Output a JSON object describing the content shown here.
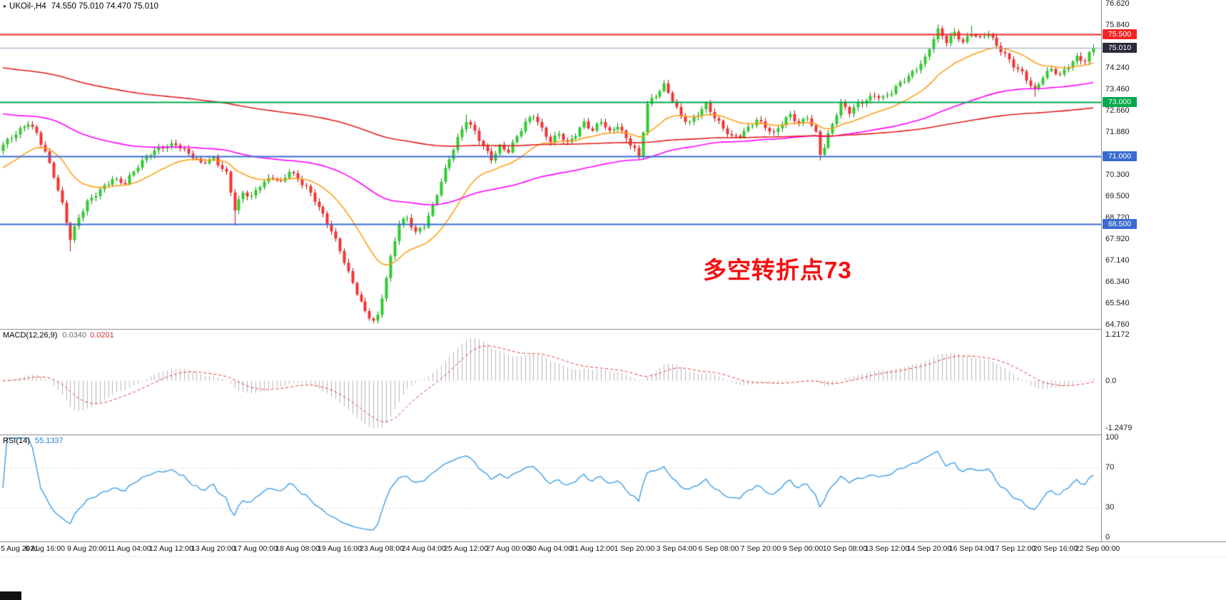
{
  "chart_data": {
    "type": "candlestick",
    "title_symbol": "UKOil-,H4",
    "ohlc_label": "74.550 75.010 74.470 75.010",
    "annotation": {
      "text": "多空转折点73",
      "color": "#f50f0f"
    },
    "price_axis": {
      "min": 64.76,
      "max": 76.62,
      "ticks": [
        "76.620",
        "75.840",
        "74.240",
        "73.460",
        "72.660",
        "71.880",
        "70.300",
        "69.500",
        "68.720",
        "67.920",
        "67.140",
        "66.340",
        "65.540",
        "64.760"
      ]
    },
    "time_axis": {
      "labels": [
        "5 Aug 2021",
        "6 Aug 16:00",
        "9 Aug 20:00",
        "11 Aug 04:00",
        "12 Aug 12:00",
        "13 Aug 20:00",
        "17 Aug 00:00",
        "18 Aug 08:00",
        "19 Aug 16:00",
        "23 Aug 08:00",
        "24 Aug 04:00",
        "25 Aug 12:00",
        "27 Aug 00:00",
        "30 Aug 04:00",
        "31 Aug 12:00",
        "1 Sep 20:00",
        "3 Sep 04:00",
        "6 Sep 08:00",
        "7 Sep 20:00",
        "9 Sep 00:00",
        "10 Sep 08:00",
        "13 Sep 12:00",
        "14 Sep 20:00",
        "16 Sep 04:00",
        "17 Sep 12:00",
        "20 Sep 16:00",
        "22 Sep 00:00"
      ]
    },
    "hlines": [
      {
        "price": 75.5,
        "label": "75.500",
        "color": "#f42525",
        "width": 2
      },
      {
        "price": 73.0,
        "label": "73.000",
        "color": "#00a84c",
        "width": 2
      },
      {
        "price": 71.0,
        "label": "71.000",
        "color": "#3a6bd0",
        "width": 2
      },
      {
        "price": 68.5,
        "label": "68.500",
        "color": "#3a6bd0",
        "width": 2
      }
    ],
    "price_line": {
      "price": 75.01,
      "label": "75.010",
      "color": "#8fa0bd",
      "badge_color": "#2b2b3b"
    },
    "candles": {
      "count": 260,
      "first_open": 71.2,
      "up_color": "#2ecc2e",
      "up_edge": "#0e8a0e",
      "down_color": "#f33434",
      "down_edge": "#a81212",
      "close_anchors": [
        [
          0,
          71.4
        ],
        [
          3,
          71.8
        ],
        [
          6,
          72.25
        ],
        [
          8,
          71.9
        ],
        [
          10,
          71.2
        ],
        [
          12,
          70.3
        ],
        [
          14,
          69.2
        ],
        [
          16,
          67.9
        ],
        [
          18,
          68.7
        ],
        [
          20,
          69.3
        ],
        [
          23,
          69.8
        ],
        [
          26,
          70.2
        ],
        [
          29,
          70.0
        ],
        [
          32,
          70.6
        ],
        [
          35,
          71.1
        ],
        [
          38,
          71.4
        ],
        [
          41,
          71.5
        ],
        [
          44,
          71.1
        ],
        [
          47,
          70.7
        ],
        [
          50,
          70.9
        ],
        [
          53,
          70.4
        ],
        [
          55,
          69.1
        ],
        [
          57,
          69.7
        ],
        [
          59,
          69.5
        ],
        [
          61,
          69.9
        ],
        [
          64,
          70.2
        ],
        [
          66,
          70.0
        ],
        [
          68,
          70.5
        ],
        [
          70,
          70.2
        ],
        [
          72,
          69.9
        ],
        [
          74,
          69.4
        ],
        [
          76,
          68.8
        ],
        [
          78,
          68.2
        ],
        [
          80,
          67.5
        ],
        [
          82,
          66.7
        ],
        [
          84,
          66.0
        ],
        [
          86,
          65.3
        ],
        [
          88,
          64.95
        ],
        [
          89,
          65.1
        ],
        [
          92,
          67.2
        ],
        [
          94,
          68.5
        ],
        [
          96,
          68.7
        ],
        [
          98,
          68.2
        ],
        [
          100,
          68.5
        ],
        [
          102,
          69.2
        ],
        [
          104,
          70.1
        ],
        [
          106,
          70.9
        ],
        [
          108,
          71.6
        ],
        [
          110,
          72.3
        ],
        [
          112,
          71.9
        ],
        [
          114,
          71.4
        ],
        [
          116,
          70.95
        ],
        [
          118,
          71.4
        ],
        [
          120,
          71.2
        ],
        [
          122,
          71.7
        ],
        [
          124,
          72.2
        ],
        [
          126,
          72.5
        ],
        [
          128,
          72.0
        ],
        [
          130,
          71.6
        ],
        [
          132,
          71.9
        ],
        [
          134,
          71.5
        ],
        [
          136,
          71.8
        ],
        [
          138,
          72.2
        ],
        [
          140,
          71.9
        ],
        [
          142,
          72.3
        ],
        [
          144,
          71.9
        ],
        [
          146,
          72.2
        ],
        [
          148,
          71.7
        ],
        [
          150,
          71.3
        ],
        [
          151,
          70.95
        ],
        [
          153,
          72.9
        ],
        [
          155,
          73.2
        ],
        [
          157,
          73.6
        ],
        [
          159,
          73.1
        ],
        [
          161,
          72.5
        ],
        [
          163,
          72.3
        ],
        [
          165,
          72.6
        ],
        [
          167,
          72.9
        ],
        [
          169,
          72.4
        ],
        [
          171,
          72.0
        ],
        [
          173,
          71.7
        ],
        [
          175,
          71.8
        ],
        [
          177,
          72.1
        ],
        [
          179,
          72.4
        ],
        [
          181,
          72.1
        ],
        [
          183,
          71.8
        ],
        [
          185,
          72.2
        ],
        [
          187,
          72.5
        ],
        [
          189,
          72.2
        ],
        [
          191,
          72.5
        ],
        [
          193,
          71.9
        ],
        [
          194,
          71.15
        ],
        [
          195,
          71.4
        ],
        [
          197,
          72.2
        ],
        [
          199,
          72.9
        ],
        [
          201,
          72.6
        ],
        [
          203,
          72.9
        ],
        [
          205,
          73.1
        ],
        [
          207,
          73.3
        ],
        [
          209,
          73.2
        ],
        [
          211,
          73.4
        ],
        [
          213,
          73.7
        ],
        [
          215,
          73.9
        ],
        [
          217,
          74.2
        ],
        [
          219,
          74.6
        ],
        [
          221,
          75.4
        ],
        [
          222,
          75.7
        ],
        [
          224,
          75.3
        ],
        [
          226,
          75.6
        ],
        [
          228,
          75.2
        ],
        [
          230,
          75.5
        ],
        [
          232,
          75.3
        ],
        [
          234,
          75.55
        ],
        [
          236,
          75.1
        ],
        [
          238,
          74.8
        ],
        [
          240,
          74.4
        ],
        [
          242,
          74.1
        ],
        [
          244,
          73.6
        ],
        [
          245,
          73.4
        ],
        [
          247,
          73.9
        ],
        [
          249,
          74.2
        ],
        [
          251,
          74.0
        ],
        [
          253,
          74.4
        ],
        [
          255,
          74.7
        ],
        [
          257,
          74.55
        ],
        [
          259,
          75.01
        ]
      ],
      "wick_lows": {
        "16": 67.5,
        "55": 68.45,
        "88": 64.85,
        "194": 70.85,
        "245": 73.2
      },
      "wick_highs": {
        "110": 72.55,
        "157": 73.78,
        "222": 75.88,
        "230": 75.82
      }
    },
    "moving_averages": [
      {
        "name": "ma-fast-orange",
        "period": 21,
        "seed": 70.5,
        "color": "#ff9f1a"
      },
      {
        "name": "ma-mid-magenta",
        "period": 90,
        "seed": 72.6,
        "color": "#ff00ff"
      },
      {
        "name": "ma-slow-red",
        "period": 240,
        "seed": 74.3,
        "color": "#e01f1f"
      }
    ],
    "macd": {
      "label": "MACD(12,26,9)",
      "value_main": "0.0340",
      "value_signal": "0.0201",
      "fast": 12,
      "slow": 26,
      "signal": 9,
      "histogram_color": "#b5b5b5",
      "signal_color": "#e03a3a",
      "axis": {
        "max": 1.2172,
        "min": -1.2479,
        "labels": [
          "1.2172",
          "0.0",
          "-1.2479"
        ]
      }
    },
    "rsi": {
      "label": "RSI(14)",
      "value": "55.1337",
      "period": 14,
      "color": "#3d9ee8",
      "levels": [
        70,
        30
      ],
      "axis_labels": [
        "100",
        "70",
        "30",
        "0"
      ]
    }
  }
}
